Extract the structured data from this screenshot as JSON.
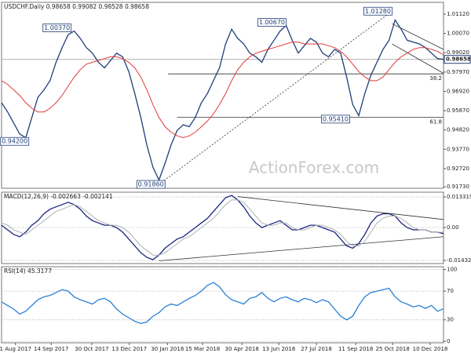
{
  "chart_data": [
    {
      "type": "line",
      "title": "USDCHF.Daily 0.98658 0.99082 0.98528 0.98658",
      "xlim": [
        0,
        73
      ],
      "ylim": [
        0.9165,
        1.0176
      ],
      "yticks": [
        {
          "value": 1.0112,
          "label": "1.01120"
        },
        {
          "value": 1.0007,
          "label": "1.00070"
        },
        {
          "value": 0.9902,
          "label": "0.99020"
        },
        {
          "value": 0.9797,
          "label": "0.97970"
        },
        {
          "value": 0.9692,
          "label": "0.96920"
        },
        {
          "value": 0.9587,
          "label": "0.95870"
        },
        {
          "value": 0.9482,
          "label": "0.94820"
        },
        {
          "value": 0.9377,
          "label": "0.93770"
        },
        {
          "value": 0.9272,
          "label": "0.92720"
        },
        {
          "value": 0.9173,
          "label": "0.91730"
        }
      ],
      "series": [
        {
          "color": "#1f3f77",
          "values": [
            0.963,
            0.958,
            0.952,
            0.946,
            0.944,
            0.955,
            0.966,
            0.97,
            0.975,
            0.985,
            0.993,
            1.0,
            1.002,
            0.998,
            0.993,
            0.99,
            0.985,
            0.982,
            0.986,
            0.99,
            0.988,
            0.98,
            0.968,
            0.955,
            0.94,
            0.928,
            0.921,
            0.93,
            0.94,
            0.948,
            0.951,
            0.95,
            0.955,
            0.963,
            0.968,
            0.975,
            0.982,
            0.995,
            1.003,
            0.998,
            0.995,
            0.99,
            0.988,
            0.985,
            0.992,
            0.997,
            1.002,
            1.005,
            0.997,
            0.99,
            0.994,
            0.998,
            0.996,
            0.99,
            0.988,
            0.992,
            0.99,
            0.977,
            0.962,
            0.956,
            0.968,
            0.978,
            0.985,
            0.992,
            0.997,
            1.008,
            1.003,
            0.997,
            0.996,
            0.995,
            0.993,
            0.99,
            0.987,
            0.98658
          ]
        },
        {
          "color": "#e03a3a",
          "values": [
            0.975,
            0.973,
            0.97,
            0.967,
            0.963,
            0.96,
            0.958,
            0.958,
            0.96,
            0.963,
            0.967,
            0.972,
            0.977,
            0.981,
            0.984,
            0.985,
            0.986,
            0.987,
            0.988,
            0.988,
            0.987,
            0.985,
            0.982,
            0.977,
            0.97,
            0.962,
            0.955,
            0.95,
            0.947,
            0.945,
            0.944,
            0.945,
            0.947,
            0.95,
            0.953,
            0.957,
            0.962,
            0.968,
            0.975,
            0.981,
            0.985,
            0.988,
            0.99,
            0.991,
            0.992,
            0.993,
            0.994,
            0.995,
            0.996,
            0.996,
            0.995,
            0.995,
            0.995,
            0.995,
            0.994,
            0.993,
            0.991,
            0.988,
            0.984,
            0.98,
            0.977,
            0.975,
            0.975,
            0.977,
            0.981,
            0.985,
            0.988,
            0.99,
            0.992,
            0.993,
            0.993,
            0.992,
            0.991,
            0.989
          ]
        }
      ],
      "price_marker": {
        "value": 0.98658,
        "label": "0.98658"
      },
      "annotations": [
        {
          "x": 11.5,
          "value": 1.0037,
          "label": "1.00370"
        },
        {
          "x": 4.5,
          "value": 0.942,
          "label": "0.94200"
        },
        {
          "x": 27,
          "value": 0.9186,
          "label": "0.91860"
        },
        {
          "x": 47,
          "value": 1.0067,
          "label": "1.00670"
        },
        {
          "x": 64.5,
          "value": 1.0128,
          "label": "1.01280"
        },
        {
          "x": 57.5,
          "value": 0.9541,
          "label": "0.95410"
        }
      ],
      "levels": [
        {
          "from": 27.5,
          "value": 0.9787,
          "label": "38.2"
        },
        {
          "from": 29,
          "value": 0.9551,
          "label": "61.8"
        }
      ],
      "trendlines": [
        {
          "x": [
            26,
            64.5
          ],
          "y": [
            0.9186,
            1.0128
          ],
          "dashed": true
        },
        {
          "x": [
            64.5,
            73
          ],
          "y": [
            1.006,
            0.992
          ],
          "dashed": false
        },
        {
          "x": [
            64.5,
            73
          ],
          "y": [
            0.995,
            0.979
          ],
          "dashed": false
        }
      ],
      "watermark": "ActionForex.com"
    },
    {
      "type": "line",
      "title": "MACD(12,26,9) -0.002663 -0.002141",
      "xlim": [
        0,
        73
      ],
      "ylim": [
        -0.0157,
        0.0154
      ],
      "grid": true,
      "yticks": [
        0.013319,
        {
          "value": 0,
          "label": "0.00"
        },
        -0.014323
      ],
      "series": [
        {
          "color": "#1a237e",
          "values": [
            0.001,
            -0.001,
            -0.003,
            -0.004,
            -0.002,
            0.001,
            0.003,
            0.006,
            0.008,
            0.009,
            0.01,
            0.011,
            0.01,
            0.008,
            0.005,
            0.003,
            0.002,
            0.001,
            0.001,
            0.0,
            -0.002,
            -0.005,
            -0.008,
            -0.011,
            -0.013,
            -0.014,
            -0.012,
            -0.009,
            -0.007,
            -0.005,
            -0.004,
            -0.002,
            0.0,
            0.002,
            0.004,
            0.007,
            0.01,
            0.013,
            0.014,
            0.012,
            0.009,
            0.005,
            0.002,
            0.0,
            0.001,
            0.002,
            0.003,
            0.001,
            -0.001,
            -0.001,
            0.0,
            0.001,
            0.001,
            0.0,
            -0.001,
            -0.002,
            -0.005,
            -0.008,
            -0.009,
            -0.007,
            -0.003,
            0.002,
            0.005,
            0.006,
            0.006,
            0.005,
            0.002,
            0.0,
            -0.001,
            -0.001,
            -0.001,
            -0.002,
            -0.002,
            -0.002663
          ]
        },
        {
          "color": "#b0b0b0",
          "values": [
            0.002,
            0.001,
            -0.001,
            -0.002,
            -0.003,
            -0.001,
            0.001,
            0.003,
            0.005,
            0.007,
            0.008,
            0.009,
            0.01,
            0.009,
            0.007,
            0.005,
            0.003,
            0.002,
            0.001,
            0.001,
            0.0,
            -0.002,
            -0.005,
            -0.008,
            -0.01,
            -0.012,
            -0.012,
            -0.011,
            -0.009,
            -0.007,
            -0.005,
            -0.004,
            -0.002,
            0.0,
            0.002,
            0.004,
            0.007,
            0.01,
            0.012,
            0.012,
            0.011,
            0.008,
            0.005,
            0.002,
            0.001,
            0.001,
            0.002,
            0.002,
            0.0,
            -0.001,
            -0.001,
            0.0,
            0.001,
            0.001,
            0.0,
            -0.001,
            -0.003,
            -0.006,
            -0.008,
            -0.008,
            -0.006,
            -0.002,
            0.002,
            0.004,
            0.005,
            0.005,
            0.004,
            0.002,
            0.0,
            -0.001,
            -0.001,
            -0.002,
            -0.002,
            -0.002141
          ]
        }
      ],
      "trendlines": [
        {
          "x": [
            39,
            73
          ],
          "y": [
            0.0135,
            0.0035
          ],
          "dashed": false
        },
        {
          "x": [
            26,
            73
          ],
          "y": [
            -0.0145,
            -0.004
          ],
          "dashed": false
        }
      ]
    },
    {
      "type": "line",
      "title": "RSI(14) 45.3177",
      "xlim": [
        0,
        73
      ],
      "ylim": [
        -2,
        104
      ],
      "grid": true,
      "yticks": [
        100,
        70,
        30,
        0
      ],
      "series": [
        {
          "color": "#2a80d6",
          "values": [
            55,
            50,
            45,
            38,
            42,
            50,
            58,
            62,
            64,
            68,
            72,
            70,
            62,
            58,
            55,
            52,
            58,
            60,
            55,
            45,
            38,
            33,
            28,
            25,
            27,
            35,
            40,
            48,
            52,
            50,
            55,
            60,
            64,
            70,
            78,
            82,
            76,
            65,
            58,
            55,
            52,
            60,
            62,
            68,
            60,
            55,
            60,
            62,
            58,
            55,
            60,
            58,
            54,
            58,
            55,
            45,
            35,
            30,
            35,
            50,
            62,
            68,
            70,
            72,
            74,
            62,
            55,
            52,
            48,
            50,
            46,
            50,
            42,
            45.3177
          ]
        }
      ],
      "xticks": [
        {
          "value": 2.3,
          "label": "1 Aug 2017"
        },
        {
          "value": 8.2,
          "label": "14 Sep 2017"
        },
        {
          "value": 14.9,
          "label": "30 Oct 2017"
        },
        {
          "value": 21.1,
          "label": "13 Dec 2017"
        },
        {
          "value": 27.4,
          "label": "30 Jan 2018"
        },
        {
          "value": 33.2,
          "label": "15 Mar 2018"
        },
        {
          "value": 39.7,
          "label": "30 Apr 2018"
        },
        {
          "value": 45.8,
          "label": "13 Jun 2018"
        },
        {
          "value": 52.0,
          "label": "27 Jul 2018"
        },
        {
          "value": 58.5,
          "label": "11 Sep 2018"
        },
        {
          "value": 64.6,
          "label": "25 Oct 2018"
        },
        {
          "value": 70.8,
          "label": "10 Dec 2018"
        }
      ]
    }
  ]
}
